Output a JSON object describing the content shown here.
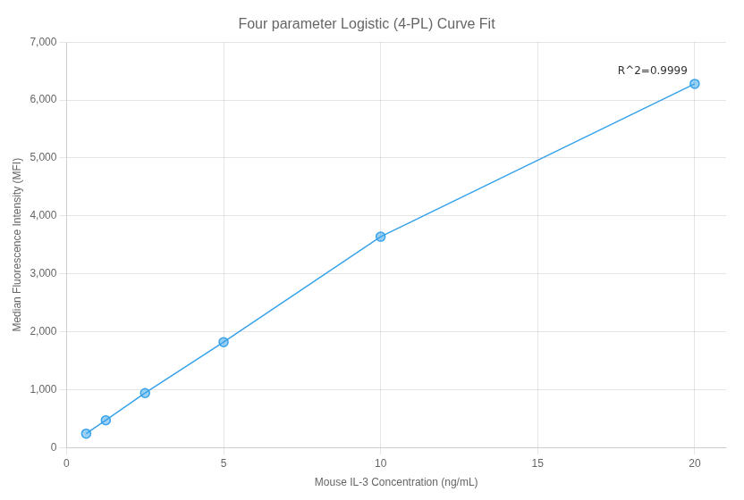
{
  "chart_data": {
    "type": "line",
    "title": "Four parameter Logistic (4-PL) Curve Fit",
    "xlabel": "Mouse IL-3 Concentration (ng/mL)",
    "ylabel": "Median Fluorescence Intensity (MFI)",
    "x": [
      0.625,
      1.25,
      2.5,
      5.0,
      10.0,
      20.0
    ],
    "values": [
      240,
      470,
      940,
      1820,
      3640,
      6280
    ],
    "marker": "circle",
    "annotation": "R^2=0.9999",
    "xlim": [
      0,
      21
    ],
    "xticks": [
      0,
      5,
      10,
      15,
      20
    ],
    "ylim": [
      0,
      7000
    ],
    "yticks": [
      0,
      {
        "value": 1000,
        "label": "1,000"
      },
      {
        "value": 2000,
        "label": "2,000"
      },
      {
        "value": 3000,
        "label": "3,000"
      },
      {
        "value": 4000,
        "label": "4,000"
      },
      {
        "value": 5000,
        "label": "5,000"
      },
      {
        "value": 6000,
        "label": "6,000"
      },
      {
        "value": 7000,
        "label": "7,000"
      }
    ],
    "grid": true
  }
}
